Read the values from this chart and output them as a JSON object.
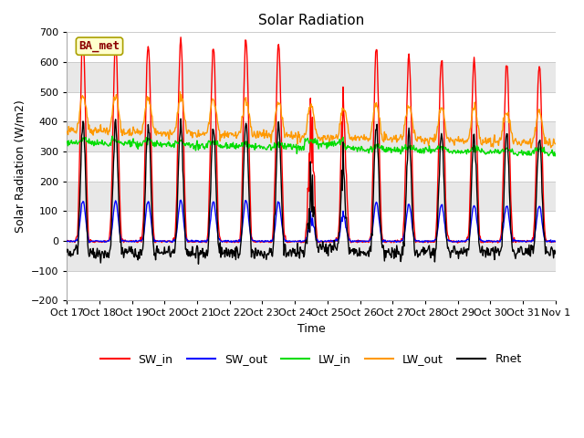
{
  "title": "Solar Radiation",
  "ylabel": "Solar Radiation (W/m2)",
  "xlabel": "Time",
  "site_label": "BA_met",
  "ylim": [
    -200,
    700
  ],
  "date_labels": [
    "Oct 17",
    "Oct 18",
    "Oct 19",
    "Oct 20",
    "Oct 21",
    "Oct 22",
    "Oct 23",
    "Oct 24",
    "Oct 25",
    "Oct 26",
    "Oct 27",
    "Oct 28",
    "Oct 29",
    "Oct 30",
    "Oct 31",
    "Nov 1"
  ],
  "series": {
    "SW_in": {
      "color": "#ff0000",
      "lw": 1.0
    },
    "SW_out": {
      "color": "#0000ff",
      "lw": 1.0
    },
    "LW_in": {
      "color": "#00dd00",
      "lw": 1.0
    },
    "LW_out": {
      "color": "#ff9900",
      "lw": 1.0
    },
    "Rnet": {
      "color": "#000000",
      "lw": 1.0
    }
  },
  "bg_color": "#e8e8e8",
  "band_color_dark": "#e0e0e0",
  "band_color_light": "#f0f0f0",
  "grid_color": "#ffffff",
  "title_fontsize": 11,
  "label_fontsize": 9,
  "tick_fontsize": 8
}
